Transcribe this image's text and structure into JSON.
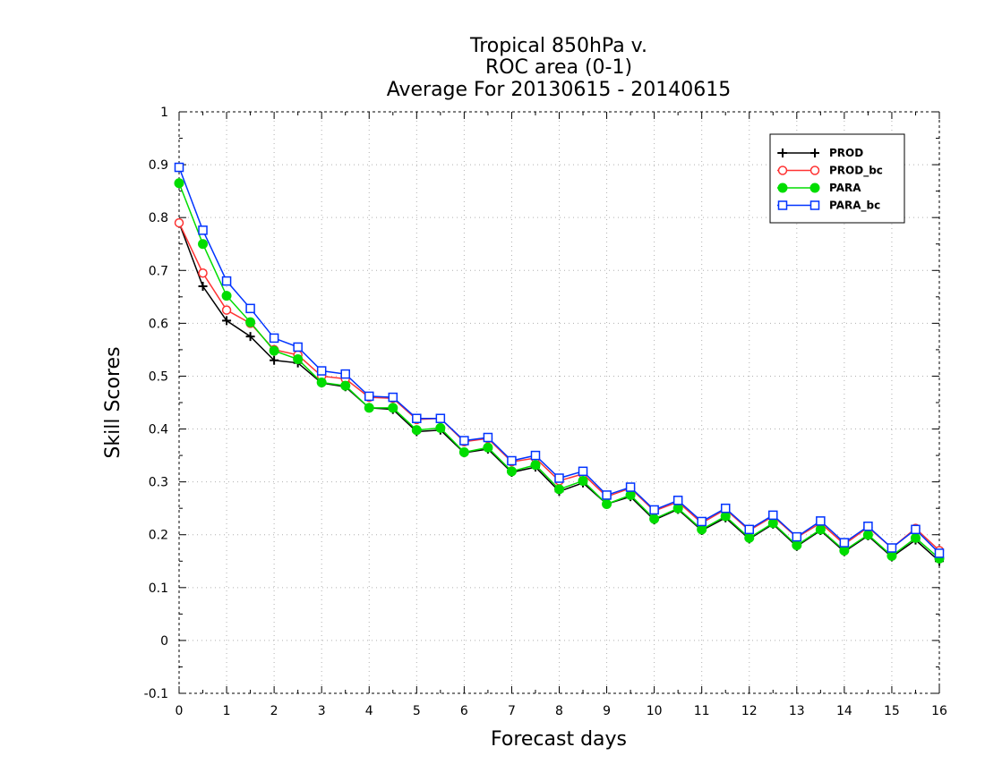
{
  "chart_data": {
    "type": "line",
    "title_lines": [
      "Tropical 850hPa v.",
      "ROC area (0-1)",
      "Average For 20130615 - 20140615"
    ],
    "xlabel": "Forecast days",
    "ylabel": "Skill Scores",
    "xlim": [
      0,
      16
    ],
    "ylim": [
      -0.1,
      1
    ],
    "x_ticks": [
      "0",
      "1",
      "2",
      "3",
      "4",
      "5",
      "6",
      "7",
      "8",
      "9",
      "10",
      "11",
      "12",
      "13",
      "14",
      "15",
      "16"
    ],
    "y_ticks": [
      "-0.1",
      "0",
      "0.1",
      "0.2",
      "0.3",
      "0.4",
      "0.5",
      "0.6",
      "0.7",
      "0.8",
      "0.9",
      "1"
    ],
    "grid": true,
    "legend_position": "top-right",
    "x": [
      0,
      0.5,
      1,
      1.5,
      2,
      2.5,
      3,
      3.5,
      4,
      4.5,
      5,
      5.5,
      6,
      6.5,
      7,
      7.5,
      8,
      8.5,
      9,
      9.5,
      10,
      10.5,
      11,
      11.5,
      12,
      12.5,
      13,
      13.5,
      14,
      14.5,
      15,
      15.5,
      16
    ],
    "series": [
      {
        "name": "PROD",
        "color": "#000000",
        "marker": "plus",
        "values": [
          0.79,
          0.67,
          0.605,
          0.575,
          0.53,
          0.525,
          0.487,
          0.48,
          0.44,
          0.437,
          0.395,
          0.398,
          0.355,
          0.362,
          0.318,
          0.328,
          0.282,
          0.298,
          0.258,
          0.272,
          0.228,
          0.248,
          0.208,
          0.232,
          0.192,
          0.22,
          0.178,
          0.208,
          0.168,
          0.198,
          0.158,
          0.19,
          0.15
        ]
      },
      {
        "name": "PROD_bc",
        "color": "#ff3333",
        "marker": "open-circle",
        "values": [
          0.79,
          0.695,
          0.625,
          0.6,
          0.55,
          0.54,
          0.5,
          0.495,
          0.46,
          0.458,
          0.418,
          0.42,
          0.376,
          0.382,
          0.338,
          0.345,
          0.302,
          0.315,
          0.272,
          0.288,
          0.245,
          0.262,
          0.222,
          0.248,
          0.208,
          0.235,
          0.195,
          0.222,
          0.182,
          0.214,
          0.175,
          0.212,
          0.17
        ]
      },
      {
        "name": "PARA",
        "color": "#00dd00",
        "marker": "filled-circle",
        "values": [
          0.865,
          0.75,
          0.652,
          0.602,
          0.548,
          0.532,
          0.488,
          0.482,
          0.44,
          0.44,
          0.398,
          0.402,
          0.356,
          0.365,
          0.32,
          0.332,
          0.286,
          0.302,
          0.258,
          0.275,
          0.23,
          0.25,
          0.21,
          0.235,
          0.194,
          0.222,
          0.18,
          0.21,
          0.17,
          0.2,
          0.16,
          0.194,
          0.155
        ]
      },
      {
        "name": "PARA_bc",
        "color": "#0033ff",
        "marker": "open-square",
        "values": [
          0.895,
          0.776,
          0.68,
          0.628,
          0.572,
          0.555,
          0.51,
          0.504,
          0.462,
          0.46,
          0.42,
          0.42,
          0.378,
          0.384,
          0.34,
          0.35,
          0.307,
          0.32,
          0.275,
          0.29,
          0.247,
          0.265,
          0.225,
          0.25,
          0.21,
          0.237,
          0.196,
          0.226,
          0.185,
          0.216,
          0.175,
          0.21,
          0.165
        ]
      }
    ]
  }
}
